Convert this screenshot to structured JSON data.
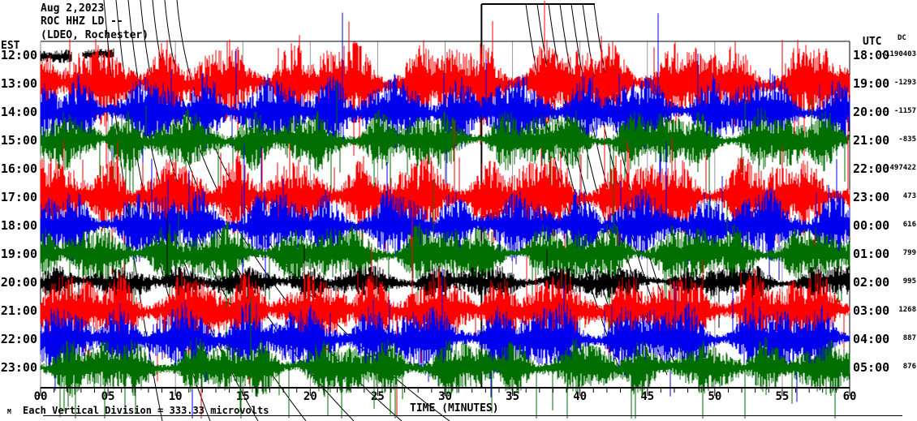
{
  "header": {
    "date": "Aug 2,2023",
    "station_line": "ROC HHZ LD --",
    "network_line": "(LDEO, Rochester)"
  },
  "left_axis": {
    "timezone": "EST"
  },
  "right_axis": {
    "timezone": "UTC",
    "dc_header": "DC"
  },
  "x_axis": {
    "label": "TIME (MINUTES)",
    "ticks": [
      "00",
      "05",
      "10",
      "15",
      "20",
      "25",
      "30",
      "35",
      "40",
      "45",
      "50",
      "55",
      "60"
    ]
  },
  "footer": {
    "glyph": "M",
    "scale_note": "Each Vertical Division = 333.33 microvolts"
  },
  "chart_data": {
    "type": "seismogram",
    "title": "ROC HHZ LD (LDEO, Rochester) Aug 2,2023",
    "x_label": "TIME (MINUTES)",
    "x_minutes_range": [
      0,
      60
    ],
    "minutes_per_line": 60,
    "grid": "vertical every 5 minutes",
    "trace_colors": {
      "black": "#000000",
      "red": "#ff0000",
      "blue": "#0000ee",
      "green": "#006e00"
    },
    "grid_color": "#999999",
    "rows": [
      {
        "est": "12:00",
        "utc": "18:00",
        "dc": "-1190403",
        "color": "black",
        "profile": "start-only",
        "base": 5,
        "burst": 3,
        "spike_p": 0,
        "spike_a": 0,
        "mega_p": 0,
        "mega_a": 0,
        "down_bias": 0
      },
      {
        "est": "13:00",
        "utc": "19:00",
        "dc": "-1293",
        "color": "red",
        "profile": "normal",
        "base": 7,
        "burst": 42,
        "spike_p": 0.03,
        "spike_a": 60,
        "mega_p": 0.004,
        "mega_a": 130,
        "down_bias": 0
      },
      {
        "est": "14:00",
        "utc": "20:00",
        "dc": "-1157",
        "color": "blue",
        "profile": "normal",
        "base": 6,
        "burst": 38,
        "spike_p": 0.02,
        "spike_a": 55,
        "mega_p": 0.003,
        "mega_a": 110,
        "down_bias": 0
      },
      {
        "est": "15:00",
        "utc": "21:00",
        "dc": "-835",
        "color": "green",
        "profile": "normal",
        "base": 5,
        "burst": 30,
        "spike_p": 0.025,
        "spike_a": 70,
        "mega_p": 0.004,
        "mega_a": 120,
        "down_bias": 0.8
      },
      {
        "est": "16:00",
        "utc": "22:00",
        "dc": "-497422",
        "color": "black",
        "profile": "off-scale",
        "base": 0,
        "burst": 0,
        "spike_p": 0,
        "spike_a": 0,
        "mega_p": 0,
        "mega_a": 0,
        "down_bias": 0
      },
      {
        "est": "17:00",
        "utc": "23:00",
        "dc": "473",
        "color": "red",
        "profile": "normal",
        "base": 7,
        "burst": 40,
        "spike_p": 0.03,
        "spike_a": 58,
        "mega_p": 0.004,
        "mega_a": 125,
        "down_bias": 0
      },
      {
        "est": "18:00",
        "utc": "00:00",
        "dc": "616",
        "color": "blue",
        "profile": "normal",
        "base": 6,
        "burst": 36,
        "spike_p": 0.02,
        "spike_a": 55,
        "mega_p": 0.003,
        "mega_a": 110,
        "down_bias": 0
      },
      {
        "est": "19:00",
        "utc": "01:00",
        "dc": "799",
        "color": "green",
        "profile": "normal",
        "base": 5,
        "burst": 30,
        "spike_p": 0.025,
        "spike_a": 70,
        "mega_p": 0.004,
        "mega_a": 120,
        "down_bias": 0.8
      },
      {
        "est": "20:00",
        "utc": "02:00",
        "dc": "995",
        "color": "black",
        "profile": "quiet",
        "base": 4,
        "burst": 16,
        "spike_p": 0.015,
        "spike_a": 45,
        "mega_p": 0.002,
        "mega_a": 90,
        "down_bias": 0.3
      },
      {
        "est": "21:00",
        "utc": "03:00",
        "dc": "1268",
        "color": "red",
        "profile": "normal",
        "base": 7,
        "burst": 40,
        "spike_p": 0.03,
        "spike_a": 58,
        "mega_p": 0.004,
        "mega_a": 125,
        "down_bias": 0.2
      },
      {
        "est": "22:00",
        "utc": "04:00",
        "dc": "887",
        "color": "blue",
        "profile": "normal",
        "base": 6,
        "burst": 36,
        "spike_p": 0.02,
        "spike_a": 55,
        "mega_p": 0.003,
        "mega_a": 110,
        "down_bias": 0.2
      },
      {
        "est": "23:00",
        "utc": "05:00",
        "dc": "876",
        "color": "green",
        "profile": "normal",
        "base": 5,
        "burst": 28,
        "spike_p": 0.025,
        "spike_a": 70,
        "mega_p": 0.004,
        "mega_a": 115,
        "down_bias": 0.85
      }
    ],
    "annotations": {
      "event_marker_minute": 32.7,
      "event_top_bar_end_minute": 41.1,
      "phase_fans": 2
    },
    "scale_note": "Each Vertical Division = 333.33 microvolts"
  }
}
